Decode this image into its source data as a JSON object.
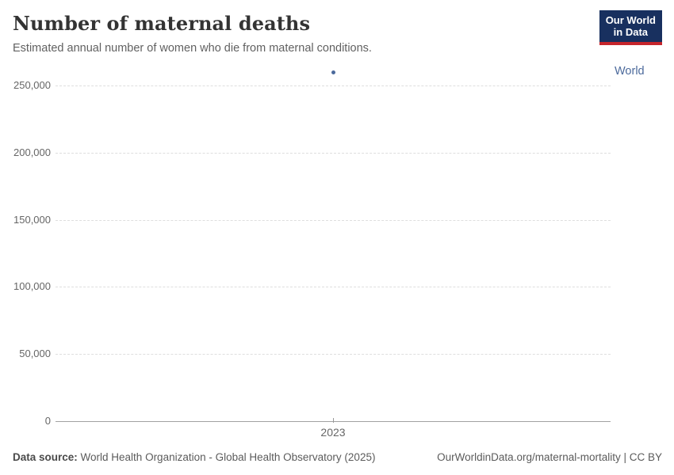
{
  "header": {
    "title": "Number of maternal deaths",
    "subtitle": "Estimated annual number of women who die from maternal conditions.",
    "logo": {
      "line1": "Our World",
      "line2": "in Data"
    }
  },
  "chart_data": {
    "type": "scatter",
    "title": "Number of maternal deaths",
    "x": [
      2023
    ],
    "x_tick_labels": [
      "2023"
    ],
    "y_ticks": [
      0,
      50000,
      100000,
      150000,
      200000,
      250000
    ],
    "y_tick_labels": [
      "0",
      "50,000",
      "100,000",
      "150,000",
      "200,000",
      "250,000"
    ],
    "ylim": [
      0,
      265000
    ],
    "grid": "horizontal-dashed",
    "legend_position": "right-of-point",
    "series": [
      {
        "name": "World",
        "color": "#4c6a9c",
        "points": [
          {
            "x": 2023,
            "y": 260000
          }
        ]
      }
    ]
  },
  "footer": {
    "data_source_label": "Data source:",
    "data_source_value": " World Health Organization - Global Health Observatory (2025)",
    "attribution": "OurWorldinData.org/maternal-mortality | CC BY"
  },
  "colors": {
    "accent_blue": "#4c6a9c",
    "logo_navy": "#18305f",
    "logo_red": "#c5252c",
    "gridline": "#dedede",
    "axis": "#a1a1a1",
    "tick_text": "#666666",
    "title_text": "#333333",
    "subtitle_text": "#616161",
    "footer_text": "#5b5b5b"
  }
}
